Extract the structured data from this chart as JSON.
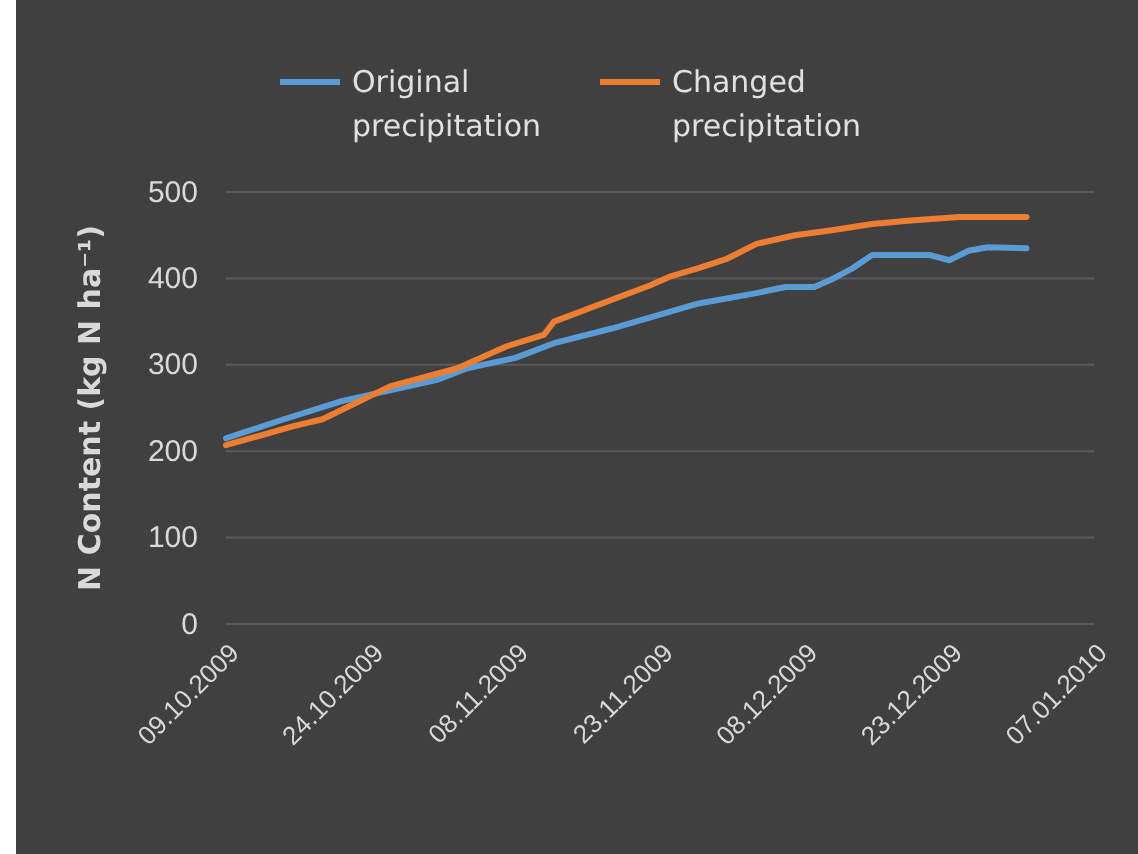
{
  "chart_data": {
    "type": "line",
    "ylabel": "N Content (kg N ha⁻¹)",
    "legend": "top",
    "grid": "y",
    "marker": "none",
    "line_style": "solid",
    "xlim": [
      "2009-10-09",
      "2010-01-07"
    ],
    "xticks": [
      {
        "value": "2009-10-09",
        "label": "09.10.2009"
      },
      {
        "value": "2009-10-24",
        "label": "24.10.2009"
      },
      {
        "value": "2009-11-08",
        "label": "08.11.2009"
      },
      {
        "value": "2009-11-23",
        "label": "23.11.2009"
      },
      {
        "value": "2009-12-08",
        "label": "08.12.2009"
      },
      {
        "value": "2009-12-23",
        "label": "23.12.2009"
      },
      {
        "value": "2010-01-07",
        "label": "07.01.2010"
      }
    ],
    "ylim": [
      0,
      500
    ],
    "yticks": [
      0,
      100,
      200,
      300,
      400,
      500
    ],
    "series": [
      {
        "name": "Original precipitation",
        "color": "#5b9bd5",
        "x": [
          "2009-10-09",
          "2009-10-15",
          "2009-10-21",
          "2009-10-31",
          "2009-11-03",
          "2009-11-08",
          "2009-11-12",
          "2009-11-18",
          "2009-11-23",
          "2009-11-27",
          "2009-12-03",
          "2009-12-06",
          "2009-12-09",
          "2009-12-11",
          "2009-12-13",
          "2009-12-15",
          "2009-12-21",
          "2009-12-23",
          "2009-12-25",
          "2009-12-27",
          "2009-12-31"
        ],
        "values": [
          215,
          237,
          258,
          283,
          296,
          308,
          325,
          342,
          358,
          371,
          383,
          390,
          390,
          400,
          412,
          427,
          427,
          421,
          432,
          436,
          435
        ]
      },
      {
        "name": "Changed precipitation",
        "color": "#ed7d31",
        "x": [
          "2009-10-09",
          "2009-10-16",
          "2009-10-19",
          "2009-10-26",
          "2009-11-02",
          "2009-11-07",
          "2009-11-11",
          "2009-11-12",
          "2009-11-22",
          "2009-11-24",
          "2009-11-27",
          "2009-11-30",
          "2009-12-03",
          "2009-12-07",
          "2009-12-11",
          "2009-12-15",
          "2009-12-19",
          "2009-12-24",
          "2009-12-31"
        ],
        "values": [
          207,
          229,
          237,
          275,
          296,
          321,
          335,
          350,
          392,
          402,
          412,
          423,
          440,
          450,
          456,
          463,
          467,
          471,
          471
        ]
      }
    ]
  }
}
